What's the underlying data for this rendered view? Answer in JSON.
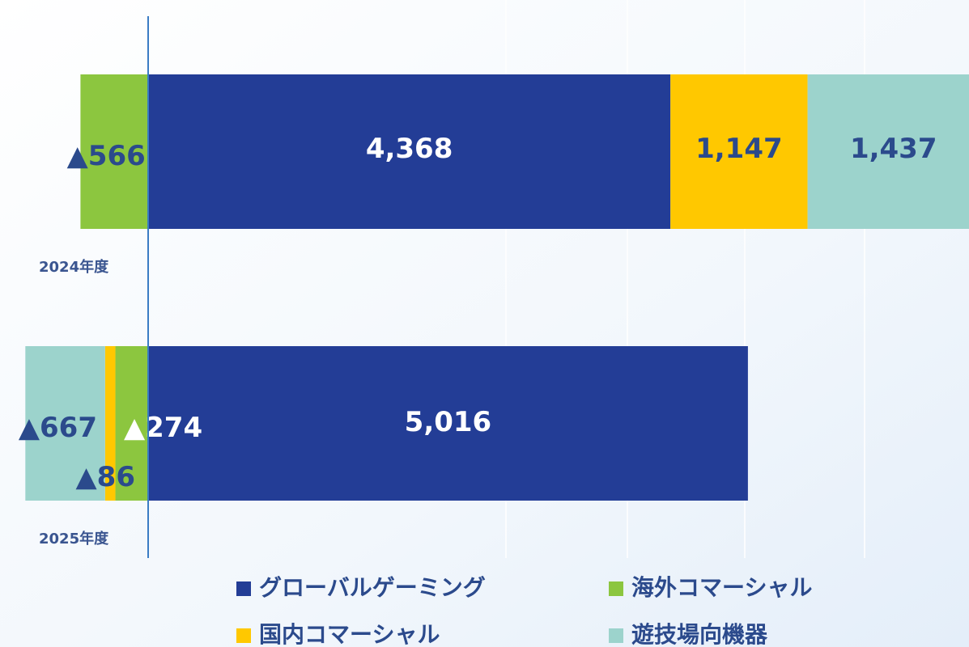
{
  "chart_data": {
    "type": "bar",
    "orientation": "horizontal",
    "stacked": true,
    "categories": [
      "2024年度",
      "2025年度"
    ],
    "xlim": [
      -1239,
      6865
    ],
    "series": [
      {
        "name": "グローバルゲーミング",
        "color": "#233d96",
        "values": [
          4368,
          5016
        ],
        "value_labels": [
          "4,368",
          "5,016"
        ]
      },
      {
        "name": "海外コマーシャル",
        "color": "#8cc63f",
        "values": [
          -566,
          -274
        ],
        "value_labels": [
          "▲566",
          "▲274"
        ]
      },
      {
        "name": "国内コマーシャル",
        "color": "#ffc800",
        "values": [
          1147,
          -86
        ],
        "value_labels": [
          "1,147",
          "▲86"
        ]
      },
      {
        "name": "遊技場向機器",
        "color": "#9cd3cc",
        "values": [
          1437,
          -667
        ],
        "value_labels": [
          "1,437",
          "▲667"
        ]
      }
    ]
  }
}
